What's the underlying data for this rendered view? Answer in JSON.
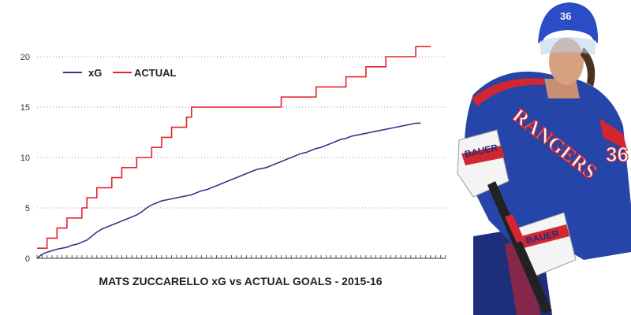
{
  "chart_data": {
    "type": "line",
    "title": "MATS ZUCCARELLO xG vs ACTUAL GOALS - 2015-16",
    "xlabel": "",
    "ylabel": "",
    "x_range": [
      0,
      82
    ],
    "ylim": [
      0,
      20
    ],
    "y_ticks": [
      0,
      5,
      10,
      15,
      20
    ],
    "grid": "horizontal dotted",
    "legend_position": "top-left",
    "series": [
      {
        "name": "xG",
        "color": "#2b3a8f",
        "points": [
          [
            0,
            0.0
          ],
          [
            1,
            0.4
          ],
          [
            2,
            0.6
          ],
          [
            3,
            0.75
          ],
          [
            4,
            0.9
          ],
          [
            5,
            1.0
          ],
          [
            6,
            1.1
          ],
          [
            7,
            1.3
          ],
          [
            8,
            1.4
          ],
          [
            9,
            1.6
          ],
          [
            10,
            1.8
          ],
          [
            11,
            2.2
          ],
          [
            12,
            2.6
          ],
          [
            13,
            2.9
          ],
          [
            14,
            3.1
          ],
          [
            15,
            3.3
          ],
          [
            16,
            3.5
          ],
          [
            17,
            3.7
          ],
          [
            18,
            3.9
          ],
          [
            19,
            4.1
          ],
          [
            20,
            4.3
          ],
          [
            21,
            4.6
          ],
          [
            22,
            5.0
          ],
          [
            23,
            5.3
          ],
          [
            24,
            5.5
          ],
          [
            25,
            5.7
          ],
          [
            26,
            5.8
          ],
          [
            27,
            5.9
          ],
          [
            28,
            6.0
          ],
          [
            29,
            6.1
          ],
          [
            30,
            6.2
          ],
          [
            31,
            6.3
          ],
          [
            32,
            6.5
          ],
          [
            33,
            6.7
          ],
          [
            34,
            6.8
          ],
          [
            35,
            7.0
          ],
          [
            36,
            7.2
          ],
          [
            37,
            7.4
          ],
          [
            38,
            7.6
          ],
          [
            39,
            7.8
          ],
          [
            40,
            8.0
          ],
          [
            41,
            8.2
          ],
          [
            42,
            8.4
          ],
          [
            43,
            8.6
          ],
          [
            44,
            8.8
          ],
          [
            45,
            8.9
          ],
          [
            46,
            9.0
          ],
          [
            47,
            9.2
          ],
          [
            48,
            9.4
          ],
          [
            49,
            9.6
          ],
          [
            50,
            9.8
          ],
          [
            51,
            10.0
          ],
          [
            52,
            10.2
          ],
          [
            53,
            10.4
          ],
          [
            54,
            10.5
          ],
          [
            55,
            10.7
          ],
          [
            56,
            10.9
          ],
          [
            57,
            11.0
          ],
          [
            58,
            11.2
          ],
          [
            59,
            11.4
          ],
          [
            60,
            11.6
          ],
          [
            61,
            11.8
          ],
          [
            62,
            11.9
          ],
          [
            63,
            12.1
          ],
          [
            64,
            12.2
          ],
          [
            65,
            12.3
          ],
          [
            66,
            12.4
          ],
          [
            67,
            12.5
          ],
          [
            68,
            12.6
          ],
          [
            69,
            12.7
          ],
          [
            70,
            12.8
          ],
          [
            71,
            12.9
          ],
          [
            72,
            13.0
          ],
          [
            73,
            13.1
          ],
          [
            74,
            13.2
          ],
          [
            75,
            13.3
          ],
          [
            76,
            13.4
          ],
          [
            77,
            13.4
          ]
        ]
      },
      {
        "name": "ACTUAL",
        "color": "#e3242b",
        "points": [
          [
            0,
            1
          ],
          [
            2,
            2
          ],
          [
            4,
            3
          ],
          [
            6,
            4
          ],
          [
            9,
            5
          ],
          [
            10,
            6
          ],
          [
            12,
            7
          ],
          [
            15,
            8
          ],
          [
            17,
            9
          ],
          [
            20,
            10
          ],
          [
            23,
            11
          ],
          [
            25,
            12
          ],
          [
            27,
            13
          ],
          [
            30,
            14
          ],
          [
            31,
            15
          ],
          [
            49,
            16
          ],
          [
            56,
            17
          ],
          [
            62,
            18
          ],
          [
            66,
            19
          ],
          [
            70,
            20
          ],
          [
            76,
            21
          ],
          [
            79,
            21
          ]
        ]
      }
    ]
  },
  "photo": {
    "caption": "",
    "jersey_number": "36",
    "jersey_text": "RANGERS",
    "glove_brand": "BAUER",
    "colors": {
      "jersey": "#2545a8",
      "trim": "#d22630",
      "helmet": "#2a4cc4",
      "white": "#f4f4f4"
    }
  }
}
